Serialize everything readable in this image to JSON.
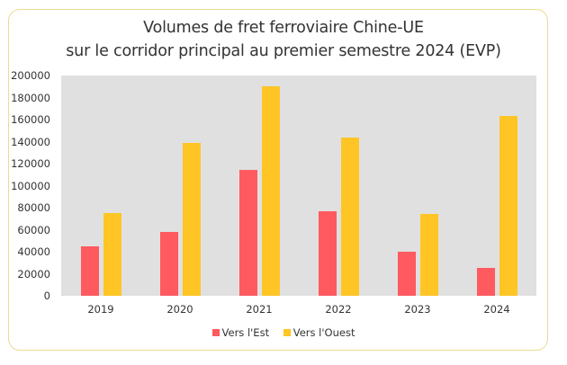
{
  "colors": {
    "east": "#ff5a5f",
    "west": "#ffc524",
    "plot_bg": "#e0e0e0",
    "frame": "#ecdb92"
  },
  "chart_data": {
    "type": "bar",
    "title": "Volumes de fret ferroviaire Chine-UE sur le corridor principal au premier semestre 2024 (EVP)",
    "title_lines": [
      "Volumes de fret ferroviaire Chine-UE",
      "sur le corridor principal au premier semestre 2024 (EVP)"
    ],
    "categories": [
      "2019",
      "2020",
      "2021",
      "2022",
      "2023",
      "2024"
    ],
    "series": [
      {
        "name": "Vers l'Est",
        "color": "#ff5a5f",
        "values": [
          45000,
          58000,
          114000,
          77000,
          40000,
          25500
        ]
      },
      {
        "name": "Vers l'Ouest",
        "color": "#ffc524",
        "values": [
          75000,
          139000,
          190000,
          144000,
          74000,
          163000
        ]
      }
    ],
    "xlabel": "",
    "ylabel": "",
    "ylim": [
      0,
      200000
    ],
    "yticks": [
      "200000",
      "180000",
      "160000",
      "140000",
      "120000",
      "100000",
      "80000",
      "60000",
      "40000",
      "20000",
      "0"
    ],
    "grid": false,
    "legend_position": "bottom"
  }
}
